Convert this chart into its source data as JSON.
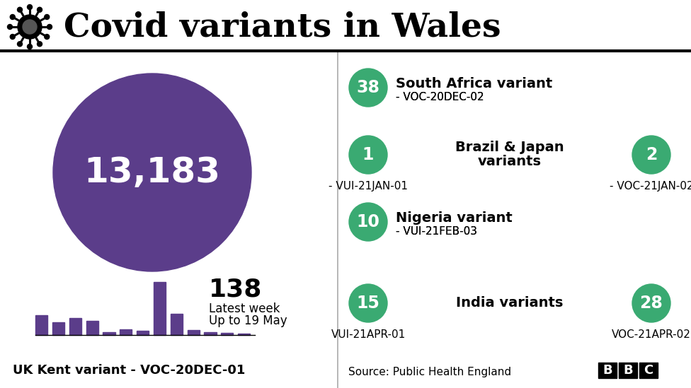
{
  "title": "Covid variants in Wales",
  "title_fontsize": 34,
  "background_color": "#ffffff",
  "purple_color": "#5b3d8a",
  "green_color": "#3aaa72",
  "big_circle_value": "13,183",
  "bar_values": [
    28,
    18,
    24,
    20,
    4,
    8,
    6,
    75,
    30,
    7,
    4,
    3,
    2
  ],
  "latest_week_value": "138",
  "latest_week_label1": "Latest week",
  "latest_week_label2": "Up to 19 May",
  "kent_label": "UK Kent variant - VOC-20DEC-01",
  "variants": [
    {
      "number": "38",
      "name": "South Africa variant",
      "code": "- VOC-20DEC-02",
      "has_second": false,
      "number2": null,
      "code2": null,
      "code_below_left": false,
      "code_below_right": false
    },
    {
      "number": "1",
      "name": "Brazil & Japan\nvariants",
      "code": "- VUI-21JAN-01",
      "has_second": true,
      "number2": "2",
      "code2": "- VOC-21JAN-02",
      "code_below_left": true,
      "code_below_right": true
    },
    {
      "number": "10",
      "name": "Nigeria variant",
      "code": "- VUI-21FEB-03",
      "has_second": false,
      "number2": null,
      "code2": null,
      "code_below_left": false,
      "code_below_right": false
    },
    {
      "number": "15",
      "name": "India variants",
      "code": "VUI-21APR-01",
      "has_second": true,
      "number2": "28",
      "code2": "VOC-21APR-02",
      "code_below_left": true,
      "code_below_right": true
    }
  ],
  "source_text": "Source: Public Health England",
  "bbc_letters": [
    "B",
    "B",
    "C"
  ]
}
